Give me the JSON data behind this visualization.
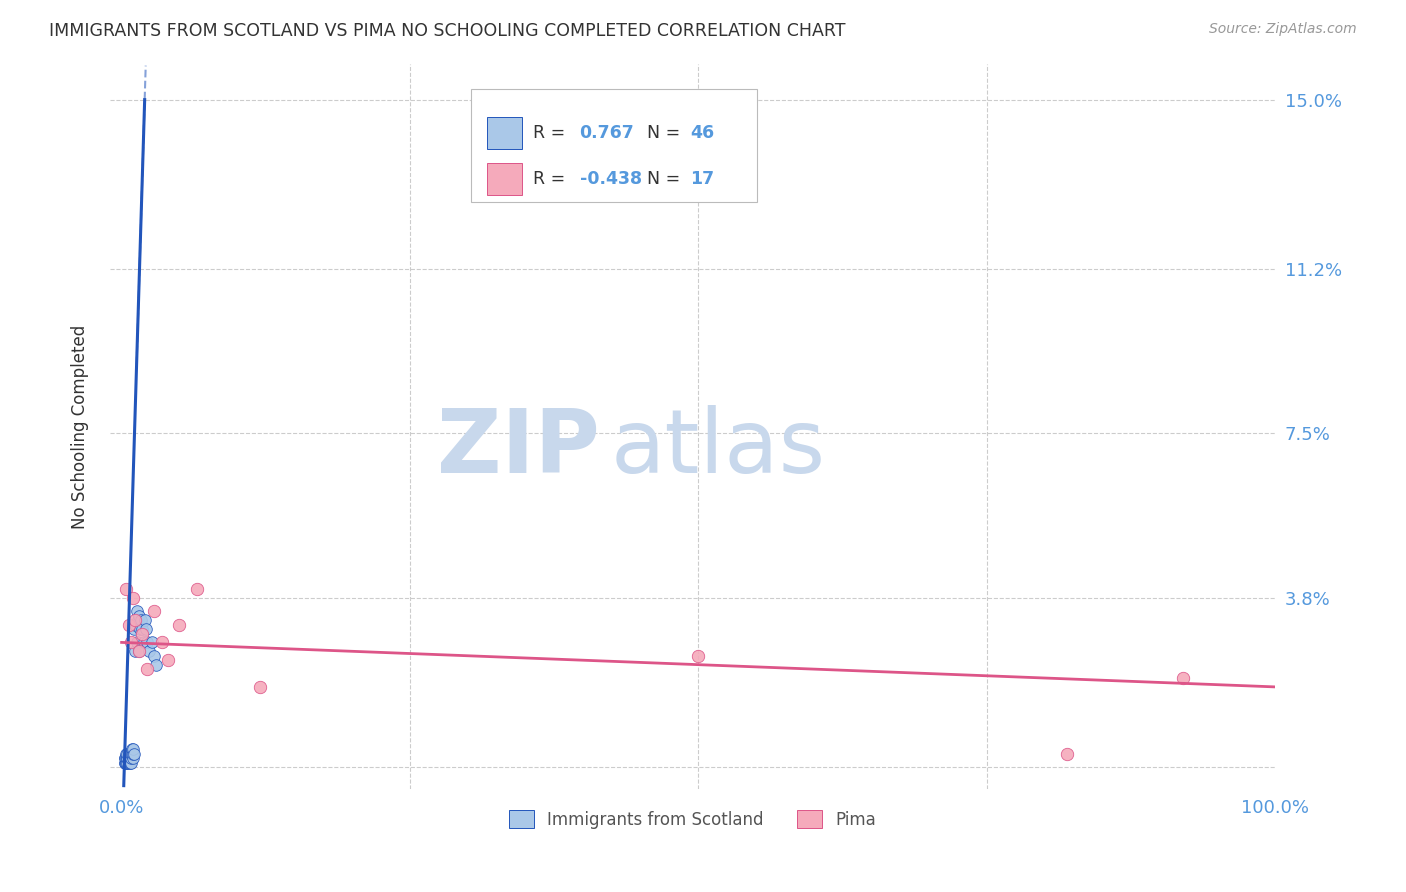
{
  "title": "IMMIGRANTS FROM SCOTLAND VS PIMA NO SCHOOLING COMPLETED CORRELATION CHART",
  "source": "Source: ZipAtlas.com",
  "ylabel_label": "No Schooling Completed",
  "legend_labels": [
    "Immigrants from Scotland",
    "Pima"
  ],
  "r_blue": 0.767,
  "n_blue": 46,
  "r_pink": -0.438,
  "n_pink": 17,
  "xlim": [
    -0.01,
    1.0
  ],
  "ylim": [
    -0.005,
    0.158
  ],
  "xticks": [
    0.0,
    0.25,
    0.5,
    0.75,
    1.0
  ],
  "xtick_labels": [
    "0.0%",
    "",
    "",
    "",
    "100.0%"
  ],
  "yticks": [
    0.0,
    0.038,
    0.075,
    0.112,
    0.15
  ],
  "ytick_labels": [
    "",
    "3.8%",
    "7.5%",
    "11.2%",
    "15.0%"
  ],
  "blue_scatter_x": [
    0.003,
    0.003,
    0.003,
    0.003,
    0.004,
    0.004,
    0.004,
    0.004,
    0.005,
    0.005,
    0.005,
    0.005,
    0.006,
    0.006,
    0.006,
    0.007,
    0.007,
    0.007,
    0.008,
    0.008,
    0.008,
    0.009,
    0.009,
    0.01,
    0.01,
    0.01,
    0.011,
    0.011,
    0.012,
    0.012,
    0.013,
    0.013,
    0.014,
    0.015,
    0.015,
    0.016,
    0.017,
    0.018,
    0.019,
    0.02,
    0.021,
    0.022,
    0.024,
    0.026,
    0.028,
    0.03
  ],
  "blue_scatter_y": [
    0.001,
    0.001,
    0.002,
    0.002,
    0.001,
    0.001,
    0.002,
    0.003,
    0.001,
    0.002,
    0.002,
    0.003,
    0.001,
    0.002,
    0.003,
    0.001,
    0.002,
    0.003,
    0.001,
    0.002,
    0.003,
    0.003,
    0.004,
    0.002,
    0.003,
    0.004,
    0.003,
    0.031,
    0.026,
    0.032,
    0.028,
    0.035,
    0.033,
    0.026,
    0.034,
    0.031,
    0.033,
    0.031,
    0.028,
    0.033,
    0.031,
    0.028,
    0.026,
    0.028,
    0.025,
    0.023
  ],
  "pink_scatter_x": [
    0.004,
    0.006,
    0.008,
    0.01,
    0.012,
    0.015,
    0.018,
    0.022,
    0.028,
    0.035,
    0.04,
    0.05,
    0.065,
    0.12,
    0.5,
    0.82,
    0.92
  ],
  "pink_scatter_y": [
    0.04,
    0.032,
    0.028,
    0.038,
    0.033,
    0.026,
    0.03,
    0.022,
    0.035,
    0.028,
    0.024,
    0.032,
    0.04,
    0.018,
    0.025,
    0.003,
    0.02
  ],
  "blue_color": "#aac8e8",
  "pink_color": "#f5aabb",
  "blue_line_color": "#2255bb",
  "pink_line_color": "#dd5588",
  "scatter_size_blue": 70,
  "scatter_size_pink": 80,
  "grid_color": "#cccccc",
  "background_color": "#ffffff",
  "watermark_zip": "ZIP",
  "watermark_atlas": "atlas",
  "watermark_color_zip": "#c8d8ec",
  "watermark_color_atlas": "#c8d8ec"
}
